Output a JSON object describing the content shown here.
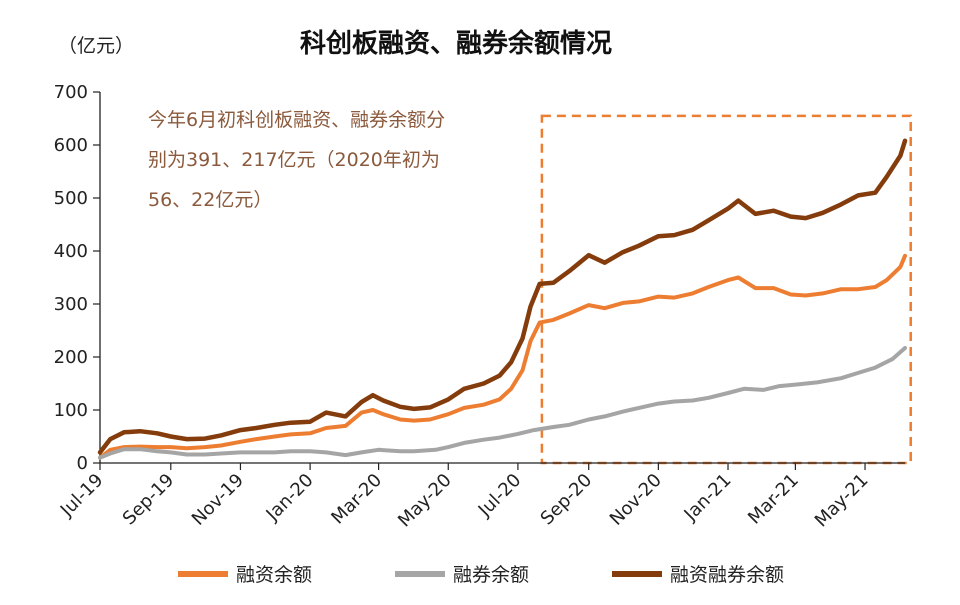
{
  "chart_data": {
    "type": "line",
    "title": "科创板融资、融券余额情况",
    "unit_label": "（亿元）",
    "ylim": [
      0,
      700
    ],
    "yticks": [
      0,
      100,
      200,
      300,
      400,
      500,
      600,
      700
    ],
    "xlim": [
      "2019-07-01",
      "2021-06-05"
    ],
    "x_ticks": [
      {
        "date": "2019-07-01",
        "label": "Jul-19"
      },
      {
        "date": "2019-09-01",
        "label": "Sep-19"
      },
      {
        "date": "2019-11-01",
        "label": "Nov-19"
      },
      {
        "date": "2020-01-01",
        "label": "Jan-20"
      },
      {
        "date": "2020-03-01",
        "label": "Mar-20"
      },
      {
        "date": "2020-05-01",
        "label": "May-20"
      },
      {
        "date": "2020-07-01",
        "label": "Jul-20"
      },
      {
        "date": "2020-09-01",
        "label": "Sep-20"
      },
      {
        "date": "2020-11-01",
        "label": "Nov-20"
      },
      {
        "date": "2021-01-01",
        "label": "Jan-21"
      },
      {
        "date": "2021-03-01",
        "label": "Mar-21"
      },
      {
        "date": "2021-05-01",
        "label": "May-21"
      }
    ],
    "annotation_lines": [
      "今年6月初科创板融资、融券余额分",
      "别为391、217亿元（2020年初为",
      "56、22亿元）"
    ],
    "highlight_range": {
      "x_start": "2020-07-22",
      "x_end": "2021-06-10",
      "y_start": 0,
      "y_end": 655
    },
    "colors": {
      "financing": "#ED7D31",
      "short_selling": "#A5A5A5",
      "total": "#843C0C",
      "annotation": "#8B5A3C",
      "highlight": "#ED7D31",
      "axis": "#222222"
    },
    "series": [
      {
        "name": "融资余额",
        "key": "financing",
        "points": [
          [
            "2019-07-01",
            10
          ],
          [
            "2019-07-10",
            25
          ],
          [
            "2019-07-22",
            30
          ],
          [
            "2019-08-05",
            31
          ],
          [
            "2019-08-20",
            30
          ],
          [
            "2019-09-01",
            30
          ],
          [
            "2019-09-15",
            28
          ],
          [
            "2019-10-01",
            30
          ],
          [
            "2019-10-15",
            33
          ],
          [
            "2019-11-01",
            40
          ],
          [
            "2019-11-15",
            45
          ],
          [
            "2019-12-01",
            50
          ],
          [
            "2019-12-15",
            54
          ],
          [
            "2020-01-01",
            56
          ],
          [
            "2020-01-15",
            66
          ],
          [
            "2020-02-01",
            70
          ],
          [
            "2020-02-15",
            95
          ],
          [
            "2020-02-25",
            100
          ],
          [
            "2020-03-05",
            92
          ],
          [
            "2020-03-20",
            82
          ],
          [
            "2020-04-01",
            80
          ],
          [
            "2020-04-15",
            82
          ],
          [
            "2020-05-01",
            92
          ],
          [
            "2020-05-15",
            104
          ],
          [
            "2020-06-01",
            110
          ],
          [
            "2020-06-15",
            120
          ],
          [
            "2020-06-25",
            140
          ],
          [
            "2020-07-05",
            175
          ],
          [
            "2020-07-12",
            230
          ],
          [
            "2020-07-20",
            265
          ],
          [
            "2020-08-01",
            270
          ],
          [
            "2020-08-15",
            282
          ],
          [
            "2020-09-01",
            298
          ],
          [
            "2020-09-15",
            292
          ],
          [
            "2020-10-01",
            302
          ],
          [
            "2020-10-15",
            305
          ],
          [
            "2020-11-01",
            314
          ],
          [
            "2020-11-15",
            312
          ],
          [
            "2020-12-01",
            320
          ],
          [
            "2020-12-15",
            332
          ],
          [
            "2021-01-01",
            345
          ],
          [
            "2021-01-10",
            350
          ],
          [
            "2021-01-25",
            330
          ],
          [
            "2021-02-10",
            330
          ],
          [
            "2021-02-25",
            318
          ],
          [
            "2021-03-10",
            316
          ],
          [
            "2021-03-25",
            320
          ],
          [
            "2021-04-10",
            328
          ],
          [
            "2021-04-25",
            328
          ],
          [
            "2021-05-10",
            332
          ],
          [
            "2021-05-20",
            345
          ],
          [
            "2021-06-01",
            370
          ],
          [
            "2021-06-05",
            391
          ]
        ]
      },
      {
        "name": "融券余额",
        "key": "short_selling",
        "points": [
          [
            "2019-07-01",
            10
          ],
          [
            "2019-07-10",
            18
          ],
          [
            "2019-07-22",
            26
          ],
          [
            "2019-08-05",
            26
          ],
          [
            "2019-08-20",
            22
          ],
          [
            "2019-09-01",
            20
          ],
          [
            "2019-09-15",
            16
          ],
          [
            "2019-10-01",
            16
          ],
          [
            "2019-10-15",
            18
          ],
          [
            "2019-11-01",
            20
          ],
          [
            "2019-11-15",
            20
          ],
          [
            "2019-12-01",
            20
          ],
          [
            "2019-12-15",
            22
          ],
          [
            "2020-01-01",
            22
          ],
          [
            "2020-01-15",
            20
          ],
          [
            "2020-02-01",
            15
          ],
          [
            "2020-02-15",
            20
          ],
          [
            "2020-03-01",
            25
          ],
          [
            "2020-03-20",
            22
          ],
          [
            "2020-04-01",
            22
          ],
          [
            "2020-04-20",
            25
          ],
          [
            "2020-05-01",
            30
          ],
          [
            "2020-05-15",
            38
          ],
          [
            "2020-06-01",
            44
          ],
          [
            "2020-06-15",
            48
          ],
          [
            "2020-07-01",
            55
          ],
          [
            "2020-07-15",
            62
          ],
          [
            "2020-08-01",
            68
          ],
          [
            "2020-08-15",
            72
          ],
          [
            "2020-09-01",
            82
          ],
          [
            "2020-09-15",
            88
          ],
          [
            "2020-10-01",
            97
          ],
          [
            "2020-10-15",
            104
          ],
          [
            "2020-11-01",
            112
          ],
          [
            "2020-11-15",
            116
          ],
          [
            "2020-12-01",
            118
          ],
          [
            "2020-12-15",
            123
          ],
          [
            "2021-01-01",
            132
          ],
          [
            "2021-01-15",
            140
          ],
          [
            "2021-02-01",
            138
          ],
          [
            "2021-02-15",
            145
          ],
          [
            "2021-03-01",
            148
          ],
          [
            "2021-03-20",
            152
          ],
          [
            "2021-04-10",
            160
          ],
          [
            "2021-04-25",
            170
          ],
          [
            "2021-05-10",
            180
          ],
          [
            "2021-05-25",
            196
          ],
          [
            "2021-06-05",
            217
          ]
        ]
      },
      {
        "name": "融资融券余额",
        "key": "total",
        "points": [
          [
            "2019-07-01",
            20
          ],
          [
            "2019-07-10",
            45
          ],
          [
            "2019-07-22",
            58
          ],
          [
            "2019-08-05",
            60
          ],
          [
            "2019-08-20",
            56
          ],
          [
            "2019-09-01",
            50
          ],
          [
            "2019-09-15",
            45
          ],
          [
            "2019-10-01",
            46
          ],
          [
            "2019-10-15",
            52
          ],
          [
            "2019-11-01",
            62
          ],
          [
            "2019-11-15",
            66
          ],
          [
            "2019-12-01",
            72
          ],
          [
            "2019-12-15",
            76
          ],
          [
            "2020-01-01",
            78
          ],
          [
            "2020-01-15",
            95
          ],
          [
            "2020-02-01",
            88
          ],
          [
            "2020-02-15",
            115
          ],
          [
            "2020-02-25",
            128
          ],
          [
            "2020-03-05",
            118
          ],
          [
            "2020-03-20",
            106
          ],
          [
            "2020-04-01",
            102
          ],
          [
            "2020-04-15",
            105
          ],
          [
            "2020-05-01",
            120
          ],
          [
            "2020-05-15",
            140
          ],
          [
            "2020-06-01",
            150
          ],
          [
            "2020-06-15",
            165
          ],
          [
            "2020-06-25",
            190
          ],
          [
            "2020-07-05",
            235
          ],
          [
            "2020-07-12",
            295
          ],
          [
            "2020-07-20",
            338
          ],
          [
            "2020-08-01",
            340
          ],
          [
            "2020-08-15",
            362
          ],
          [
            "2020-09-01",
            392
          ],
          [
            "2020-09-15",
            378
          ],
          [
            "2020-10-01",
            398
          ],
          [
            "2020-10-15",
            410
          ],
          [
            "2020-11-01",
            428
          ],
          [
            "2020-11-15",
            430
          ],
          [
            "2020-12-01",
            440
          ],
          [
            "2020-12-15",
            458
          ],
          [
            "2021-01-01",
            480
          ],
          [
            "2021-01-10",
            495
          ],
          [
            "2021-01-25",
            470
          ],
          [
            "2021-02-10",
            476
          ],
          [
            "2021-02-25",
            465
          ],
          [
            "2021-03-10",
            462
          ],
          [
            "2021-03-25",
            472
          ],
          [
            "2021-04-10",
            488
          ],
          [
            "2021-04-25",
            505
          ],
          [
            "2021-05-10",
            510
          ],
          [
            "2021-05-20",
            540
          ],
          [
            "2021-06-01",
            580
          ],
          [
            "2021-06-05",
            608
          ]
        ]
      }
    ],
    "legend_position": "bottom"
  }
}
